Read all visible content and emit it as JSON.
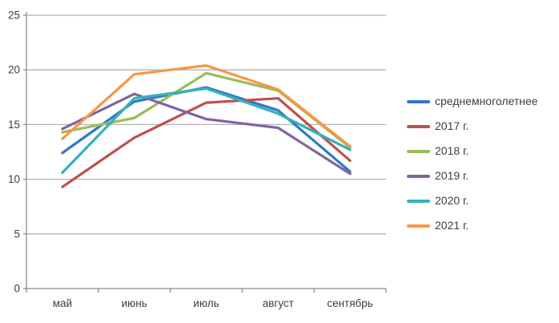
{
  "chart_data": {
    "type": "line",
    "title": "",
    "xlabel": "",
    "ylabel": "",
    "categories": [
      "май",
      "июнь",
      "июль",
      "август",
      "сентябрь"
    ],
    "series": [
      {
        "name": "среднемноголетнее",
        "color": "#2e79c2",
        "values": [
          12.4,
          17.1,
          18.4,
          16.3,
          10.7
        ]
      },
      {
        "name": "2017 г.",
        "color": "#c0504d",
        "values": [
          9.3,
          13.8,
          17.0,
          17.4,
          11.7
        ]
      },
      {
        "name": "2018 г.",
        "color": "#9bbb59",
        "values": [
          14.3,
          15.6,
          19.7,
          18.1,
          12.9
        ]
      },
      {
        "name": "2019 г.",
        "color": "#8064a2",
        "values": [
          14.6,
          17.8,
          15.5,
          14.7,
          10.5
        ]
      },
      {
        "name": "2020 г.",
        "color": "#33b1be",
        "values": [
          10.6,
          17.4,
          18.3,
          16.0,
          12.7
        ]
      },
      {
        "name": "2021 г.",
        "color": "#f79646",
        "values": [
          13.7,
          19.6,
          20.4,
          18.2,
          13.0
        ]
      }
    ],
    "ylim": [
      0,
      25
    ],
    "yticks": [
      0,
      5,
      10,
      15,
      20,
      25
    ],
    "grid": true,
    "legend_position": "right"
  },
  "style": {
    "gridline_color": "#b3b3b3",
    "axis_color": "#8c8c8c",
    "tick_label_color": "#3b3e48"
  }
}
